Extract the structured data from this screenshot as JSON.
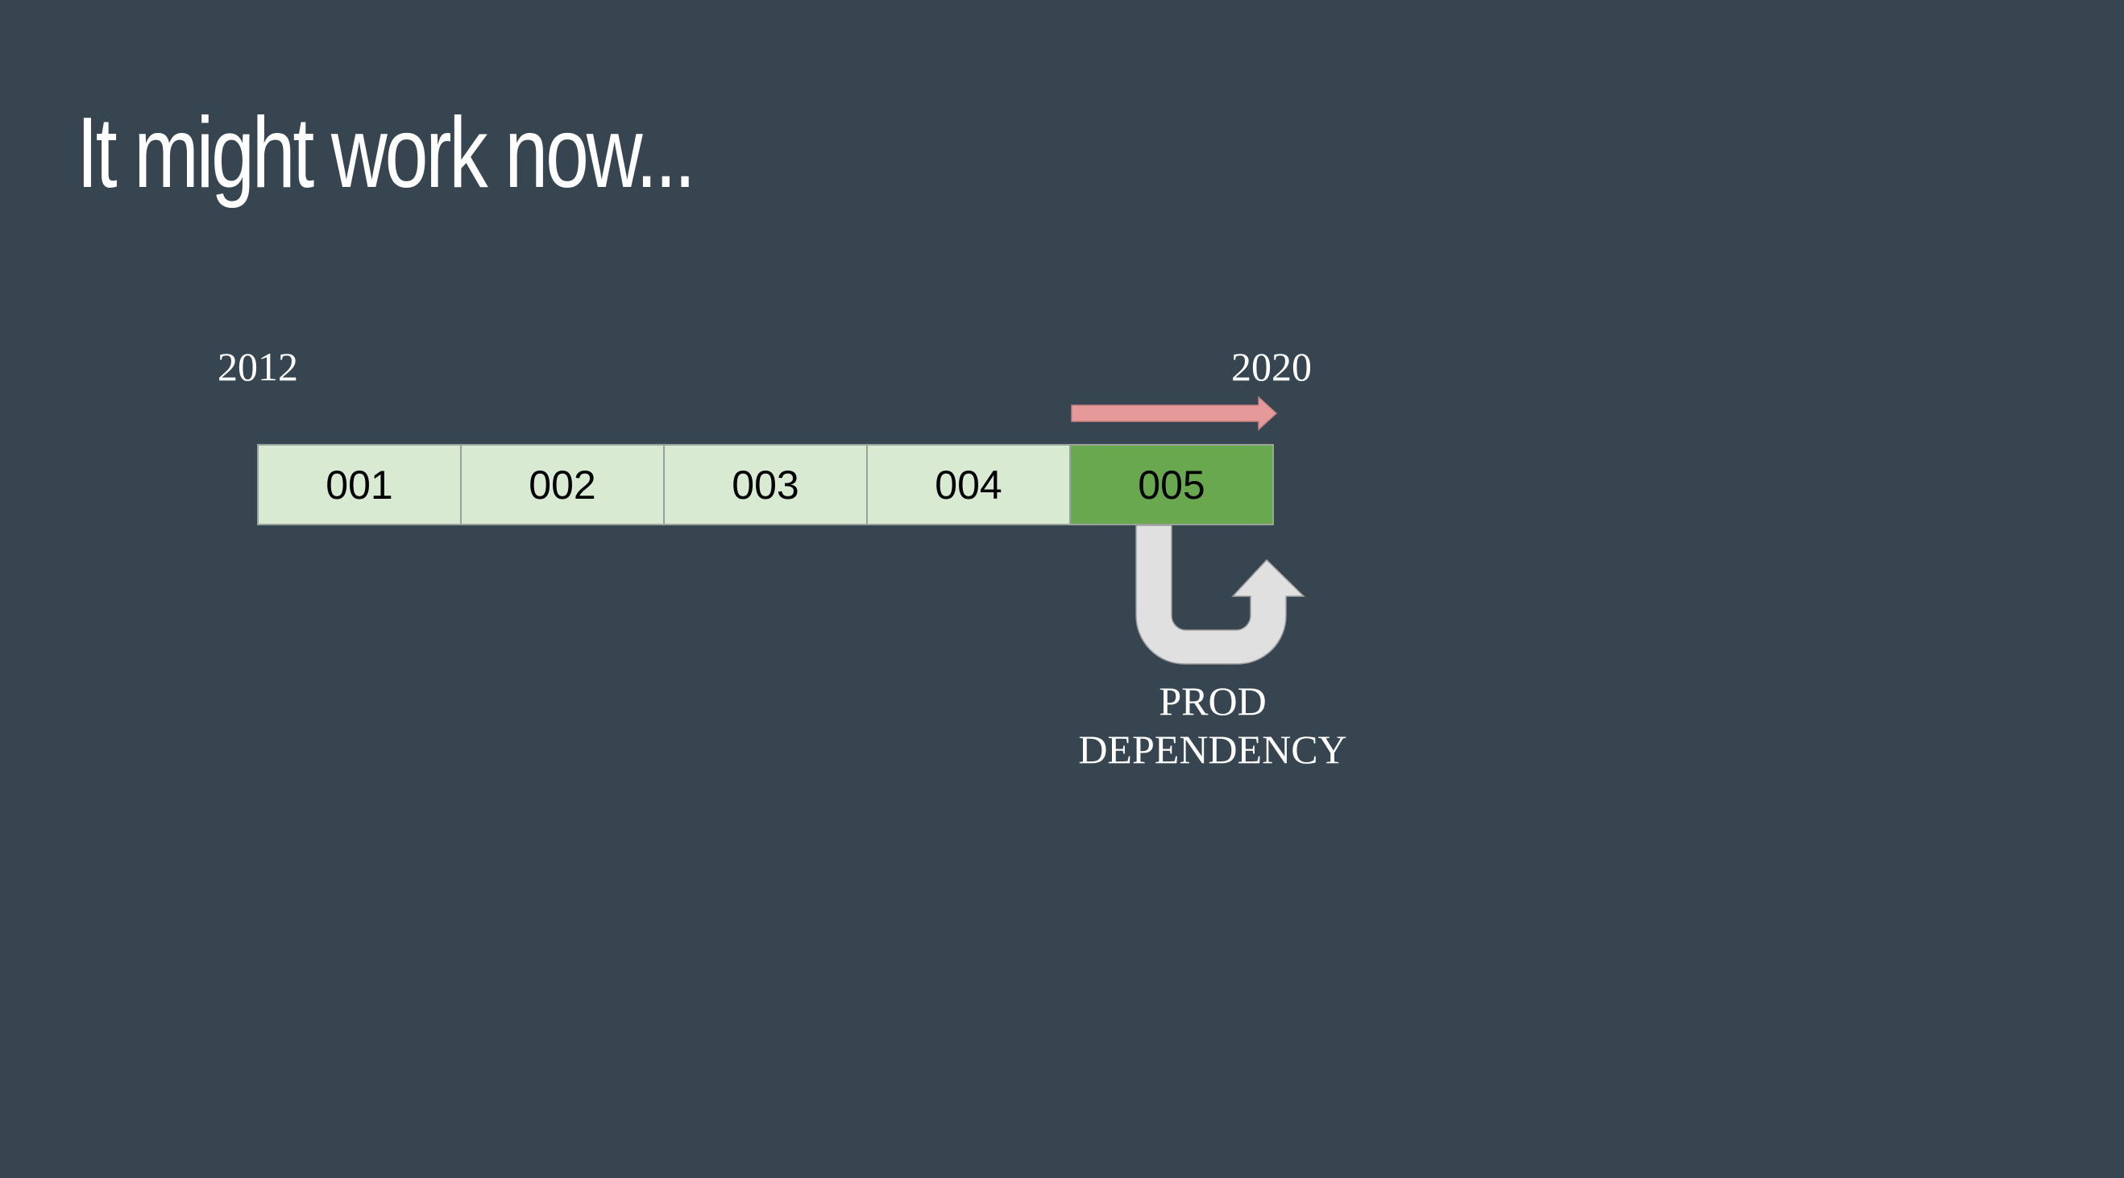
{
  "slide": {
    "title": "It might work now...",
    "timeline": {
      "start_year": "2012",
      "end_year": "2020",
      "cells": [
        {
          "label": "001",
          "active": false
        },
        {
          "label": "002",
          "active": false
        },
        {
          "label": "003",
          "active": false
        },
        {
          "label": "004",
          "active": false
        },
        {
          "label": "005",
          "active": true
        }
      ]
    },
    "dependency_label": {
      "line1": "PROD",
      "line2": "DEPENDENCY"
    }
  },
  "colors": {
    "background": "#36454f",
    "cell_light": "#d9ead3",
    "cell_active": "#6aa84f",
    "progress_arrow": "#e69999",
    "uturn_arrow": "#e0e0e0"
  },
  "icons": {
    "progress": "right-arrow-icon",
    "dependency": "u-turn-arrow-icon"
  }
}
